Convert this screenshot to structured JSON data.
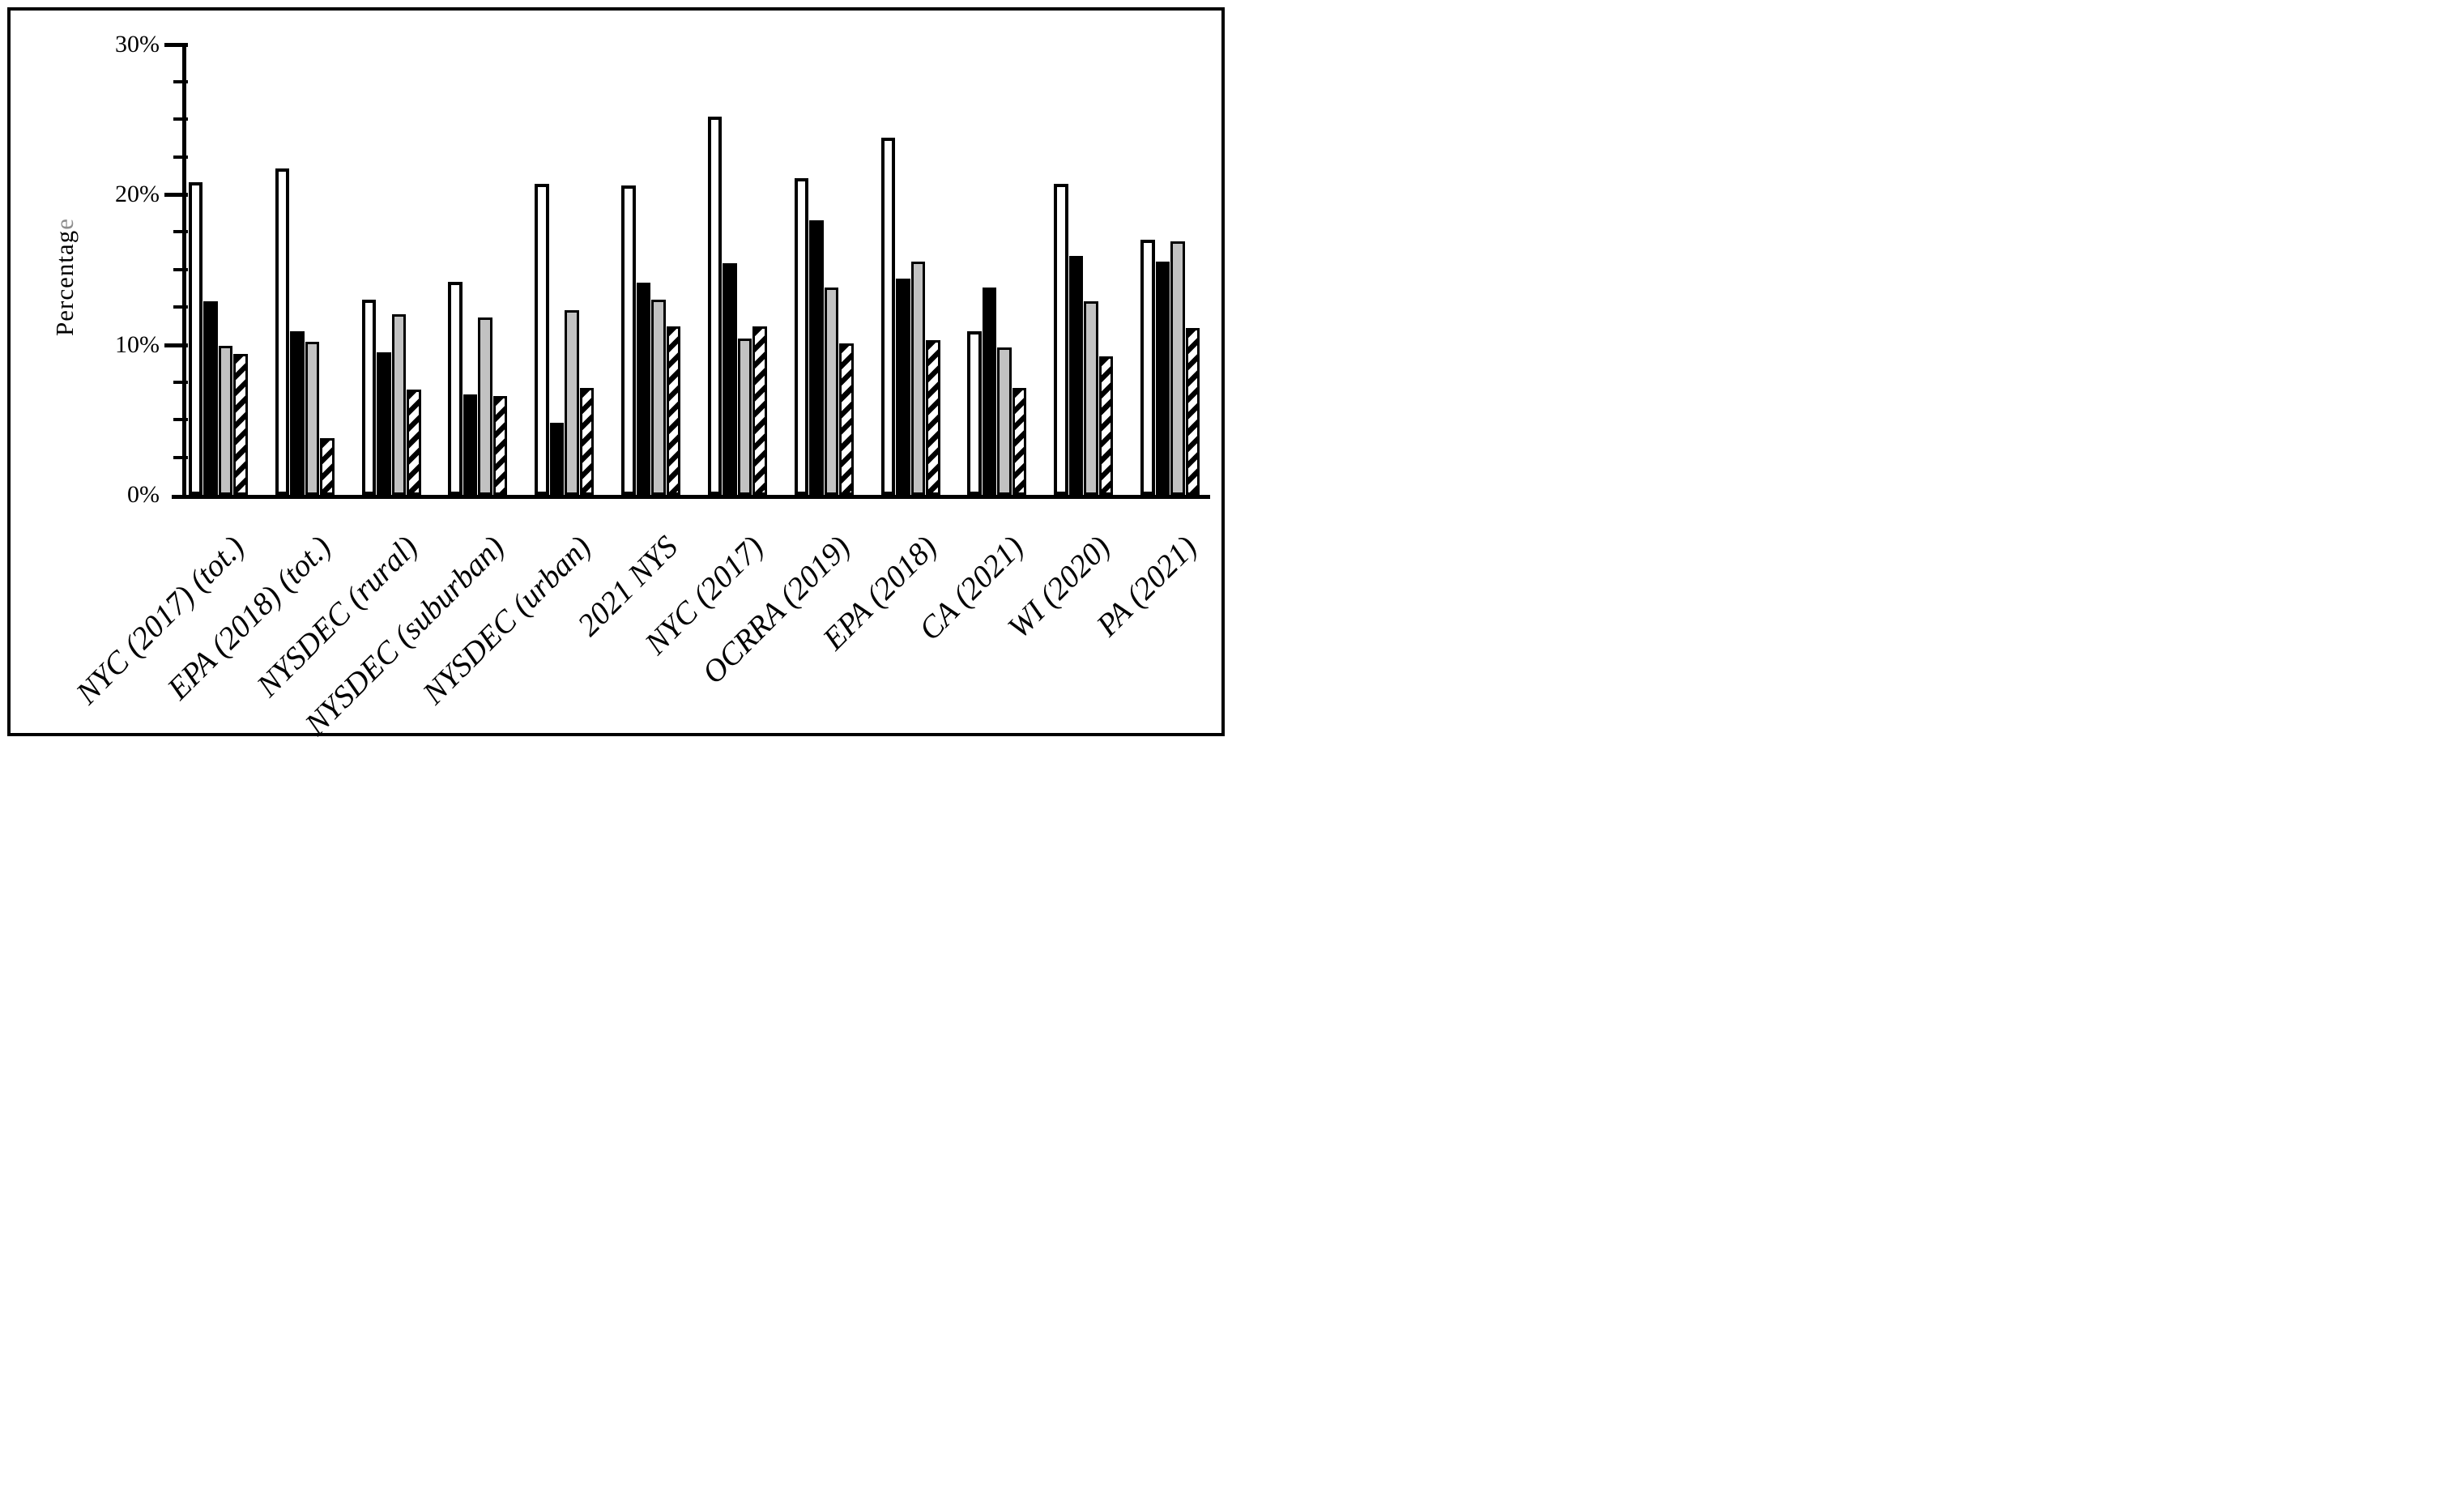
{
  "figure": {
    "background_color": "#ffffff",
    "frame_color": "#000000",
    "title": ""
  },
  "chart_data": {
    "type": "bar",
    "title": "",
    "xlabel": "",
    "ylabel": "Percentage",
    "ylabel_black_part": "Percentag",
    "ylabel_gray_part": "e",
    "ylabel_gray_color": "#8c8c8c",
    "ylim": [
      0,
      30
    ],
    "ytick_values": [
      0,
      10,
      20,
      30
    ],
    "ytick_labels": [
      "0%",
      "10%",
      "20%",
      "30%"
    ],
    "minor_tick_values": [
      2.5,
      5,
      7.5,
      12.5,
      15,
      17.5,
      22.5,
      25,
      27.5
    ],
    "grid": false,
    "legend_position": "none",
    "bar_outline_color": "#000000",
    "categories": [
      "NYC (2017) (tot.)",
      "EPA (2018) (tot.)",
      "NYSDEC (rural)",
      "NYSDEC (suburban)",
      "NYSDEC (urban)",
      "2021 NYS",
      "NYC (2017)",
      "OCRRA (2019)",
      "EPA (2018)",
      "CA (2021)",
      "WI (2020)",
      "PA (2021)"
    ],
    "series": [
      {
        "name": "white",
        "fill": "#ffffff",
        "pattern": "solid",
        "values": [
          20.8,
          21.7,
          13.0,
          14.2,
          20.7,
          20.6,
          25.2,
          21.1,
          23.8,
          10.9,
          20.7,
          17.0
        ]
      },
      {
        "name": "black",
        "fill": "#000000",
        "pattern": "solid",
        "values": [
          12.9,
          10.9,
          9.5,
          6.7,
          4.8,
          14.1,
          15.4,
          18.3,
          14.4,
          13.8,
          15.9,
          15.5
        ]
      },
      {
        "name": "gray",
        "fill": "#c2c2c2",
        "pattern": "solid",
        "values": [
          9.9,
          10.2,
          12.0,
          11.8,
          12.3,
          13.0,
          10.4,
          13.8,
          15.5,
          9.8,
          12.9,
          16.9
        ]
      },
      {
        "name": "hatched",
        "fill": "#ffffff",
        "pattern": "diagonal-stripes",
        "values": [
          9.4,
          3.8,
          7.0,
          6.6,
          7.1,
          11.2,
          11.2,
          10.1,
          10.3,
          7.1,
          9.2,
          11.1
        ]
      }
    ]
  }
}
